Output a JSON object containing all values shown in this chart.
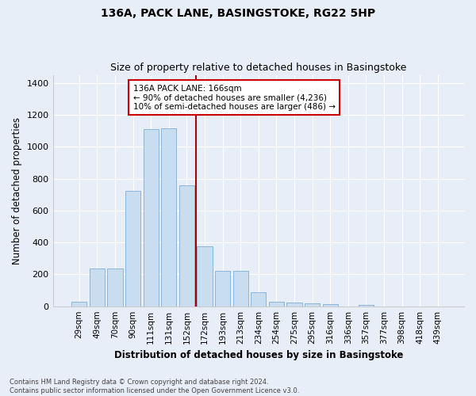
{
  "title1": "136A, PACK LANE, BASINGSTOKE, RG22 5HP",
  "title2": "Size of property relative to detached houses in Basingstoke",
  "xlabel": "Distribution of detached houses by size in Basingstoke",
  "ylabel": "Number of detached properties",
  "footnote": "Contains HM Land Registry data © Crown copyright and database right 2024.\nContains public sector information licensed under the Open Government Licence v3.0.",
  "categories": [
    "29sqm",
    "49sqm",
    "70sqm",
    "90sqm",
    "111sqm",
    "131sqm",
    "152sqm",
    "172sqm",
    "193sqm",
    "213sqm",
    "234sqm",
    "254sqm",
    "275sqm",
    "295sqm",
    "316sqm",
    "336sqm",
    "357sqm",
    "377sqm",
    "398sqm",
    "418sqm",
    "439sqm"
  ],
  "values": [
    30,
    235,
    235,
    725,
    1110,
    1115,
    760,
    375,
    220,
    220,
    90,
    30,
    25,
    20,
    15,
    0,
    10,
    0,
    0,
    0,
    0
  ],
  "bar_color": "#c8ddf0",
  "bar_edge_color": "#7aaed6",
  "vline_color": "#aa0000",
  "annotation_title": "136A PACK LANE: 166sqm",
  "annotation_line1": "← 90% of detached houses are smaller (4,236)",
  "annotation_line2": "10% of semi-detached houses are larger (486) →",
  "annotation_box_color": "#ffffff",
  "annotation_box_edge": "#cc0000",
  "background_color": "#e8eef7",
  "grid_color": "#ffffff",
  "ylim": [
    0,
    1450
  ],
  "yticks": [
    0,
    200,
    400,
    600,
    800,
    1000,
    1200,
    1400
  ]
}
